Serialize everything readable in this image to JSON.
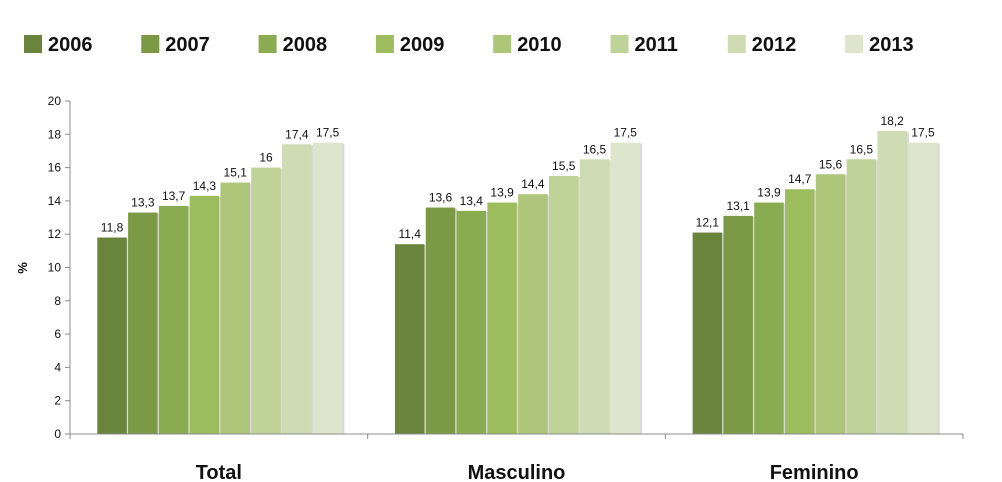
{
  "chart_data": {
    "type": "bar",
    "categories": [
      "Total",
      "Masculino",
      "Feminino"
    ],
    "series": [
      {
        "name": "2006",
        "color": "#6b843b",
        "values": [
          11.8,
          11.4,
          12.1
        ],
        "labels": [
          "11,8",
          "11,4",
          "12,1"
        ]
      },
      {
        "name": "2007",
        "color": "#7c9a45",
        "values": [
          13.3,
          13.6,
          13.1
        ],
        "labels": [
          "13,3",
          "13,6",
          "13,1"
        ]
      },
      {
        "name": "2008",
        "color": "#8aac50",
        "values": [
          13.7,
          13.4,
          13.9
        ],
        "labels": [
          "13,7",
          "13,4",
          "13,9"
        ]
      },
      {
        "name": "2009",
        "color": "#9cbc5e",
        "values": [
          14.3,
          13.9,
          14.7
        ],
        "labels": [
          "14,3",
          "13,9",
          "14,7"
        ]
      },
      {
        "name": "2010",
        "color": "#adc679",
        "values": [
          15.1,
          14.4,
          15.6
        ],
        "labels": [
          "15,1",
          "14,4",
          "15,6"
        ]
      },
      {
        "name": "2011",
        "color": "#bfd297",
        "values": [
          16.0,
          15.5,
          16.5
        ],
        "labels": [
          "16",
          "15,5",
          "16,5"
        ]
      },
      {
        "name": "2012",
        "color": "#cfdcb3",
        "values": [
          17.4,
          16.5,
          18.2
        ],
        "labels": [
          "17,4",
          "16,5",
          "18,2"
        ]
      },
      {
        "name": "2013",
        "color": "#dde6cc",
        "values": [
          17.5,
          17.5,
          17.5
        ],
        "labels": [
          "17,5",
          "17,5",
          "17,5"
        ]
      }
    ],
    "ylabel": "%",
    "ylim": [
      0,
      20
    ],
    "yticks": [
      0,
      2,
      4,
      6,
      8,
      10,
      12,
      14,
      16,
      18,
      20
    ],
    "grid": false,
    "legend_position": "top"
  }
}
